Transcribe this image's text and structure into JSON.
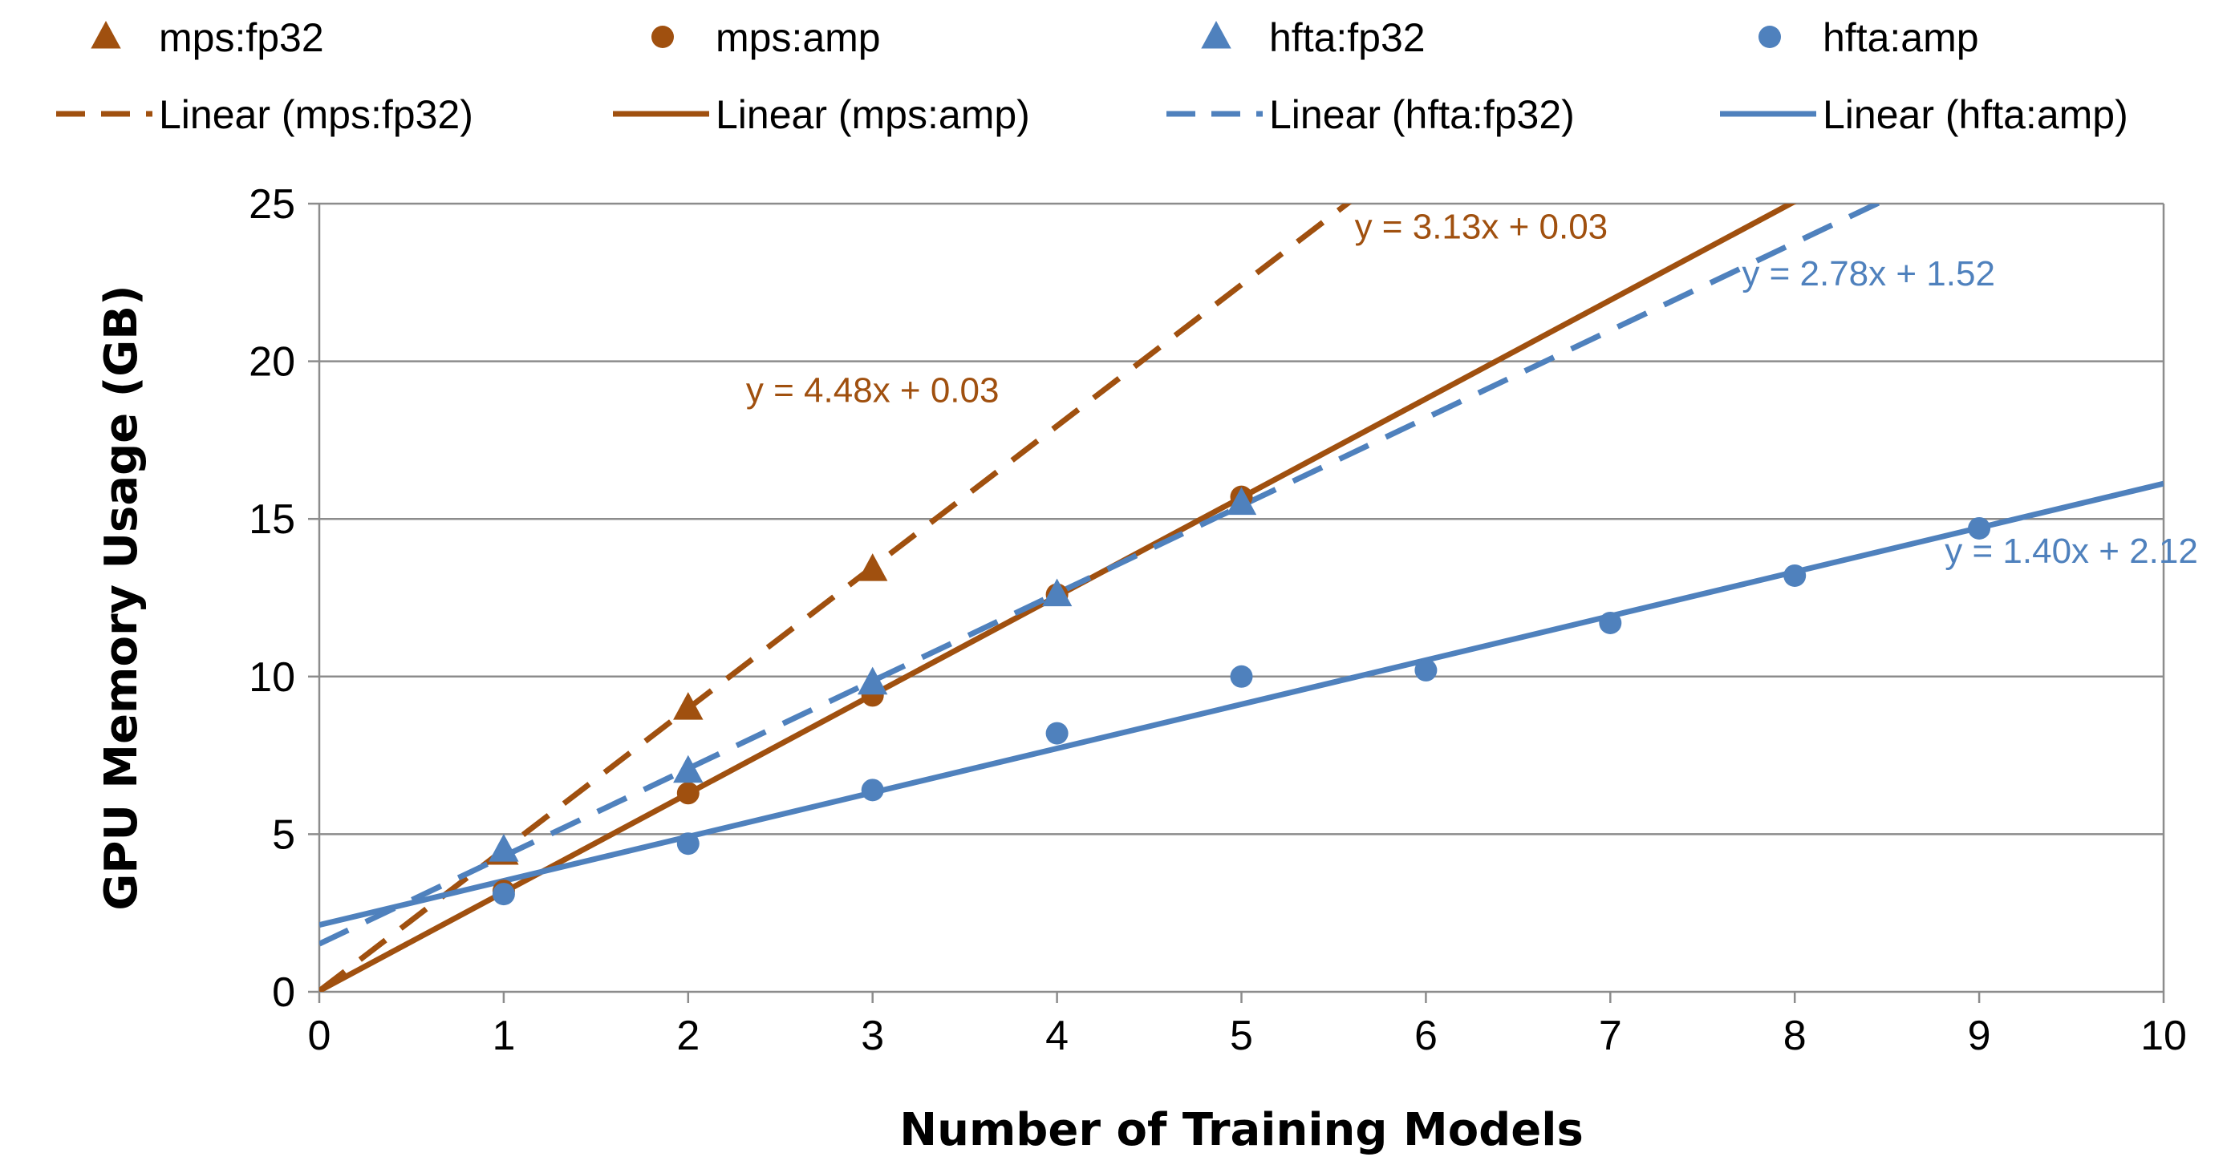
{
  "chart_data": {
    "type": "scatter",
    "title": "",
    "xlabel": "Number of Training Models",
    "ylabel": "GPU Memory Usage (GB)",
    "xlim": [
      0,
      10
    ],
    "ylim": [
      0,
      25
    ],
    "xticks": [
      "0",
      "1",
      "2",
      "3",
      "4",
      "5",
      "6",
      "7",
      "8",
      "9",
      "10"
    ],
    "yticks": [
      "0",
      "5",
      "10",
      "15",
      "20",
      "25"
    ],
    "grid": "horizontal",
    "legend_position": "top",
    "series": [
      {
        "name": "mps:fp32",
        "marker": "triangle",
        "color": "#A0500F",
        "points": [
          [
            1,
            4.4
          ],
          [
            2,
            9.0
          ],
          [
            3,
            13.4
          ]
        ]
      },
      {
        "name": "mps:amp",
        "marker": "circle",
        "color": "#A0500F",
        "points": [
          [
            1,
            3.2
          ],
          [
            2,
            6.3
          ],
          [
            3,
            9.4
          ],
          [
            4,
            12.6
          ],
          [
            5,
            15.7
          ]
        ]
      },
      {
        "name": "hfta:fp32",
        "marker": "triangle",
        "color": "#4F81BD",
        "points": [
          [
            1,
            4.5
          ],
          [
            2,
            7.0
          ],
          [
            3,
            9.8
          ],
          [
            4,
            12.6
          ],
          [
            5,
            15.5
          ]
        ]
      },
      {
        "name": "hfta:amp",
        "marker": "circle",
        "color": "#4F81BD",
        "points": [
          [
            1,
            3.1
          ],
          [
            2,
            4.7
          ],
          [
            3,
            6.4
          ],
          [
            4,
            8.2
          ],
          [
            5,
            10.0
          ],
          [
            6,
            10.2
          ],
          [
            7,
            11.7
          ],
          [
            8,
            13.2
          ],
          [
            9,
            14.7
          ]
        ]
      }
    ],
    "trendlines": [
      {
        "name": "Linear (mps:fp32)",
        "slope": 4.48,
        "intercept": 0.03,
        "style": "dashed",
        "color": "#A0500F",
        "equation": "y = 4.48x + 0.03"
      },
      {
        "name": "Linear (mps:amp)",
        "slope": 3.13,
        "intercept": 0.03,
        "style": "solid",
        "color": "#A0500F",
        "equation": "y = 3.13x + 0.03"
      },
      {
        "name": "Linear (hfta:fp32)",
        "slope": 2.78,
        "intercept": 1.52,
        "style": "dashed",
        "color": "#4F81BD",
        "equation": "y = 2.78x + 1.52"
      },
      {
        "name": "Linear (hfta:amp)",
        "slope": 1.4,
        "intercept": 2.12,
        "style": "solid",
        "color": "#4F81BD",
        "equation": "y = 1.40x + 2.12"
      }
    ],
    "equation_labels": [
      {
        "text": "y = 4.48x + 0.03",
        "x": 3.0,
        "y": 18.7,
        "color": "#A0500F"
      },
      {
        "text": "y = 3.13x + 0.03",
        "x": 6.3,
        "y": 23.9,
        "color": "#A0500F"
      },
      {
        "text": "y = 2.78x + 1.52",
        "x": 8.4,
        "y": 22.4,
        "color": "#4F81BD"
      },
      {
        "text": "y = 1.40x + 2.12",
        "x": 9.5,
        "y": 13.6,
        "color": "#4F81BD"
      }
    ]
  }
}
